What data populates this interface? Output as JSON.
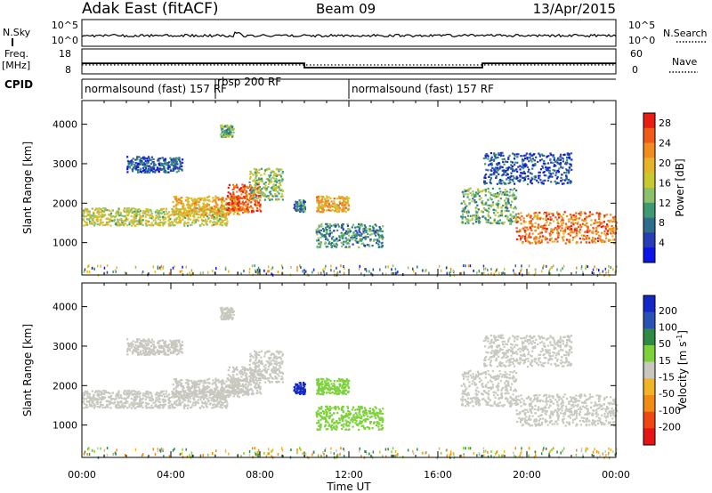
{
  "header": {
    "station": "Adak East (fitACF)",
    "beam": "Beam 09",
    "date": "13/Apr/2015"
  },
  "noise_panel": {
    "left_label": "N.Sky",
    "right_label": "N.Search",
    "left_ticks": [
      "10^5",
      "10^0"
    ],
    "right_ticks": [
      "10^5",
      "10^0"
    ]
  },
  "freq_panel": {
    "left_label": "Freq.",
    "left_unit": "[MHz]",
    "right_label": "Nave",
    "left_ticks": [
      "18",
      "8"
    ],
    "right_ticks": [
      "60",
      "0"
    ]
  },
  "cpid_panel": {
    "label": "CPID",
    "segments": [
      {
        "name": "normalsound (fast) 157 RF",
        "start_h": 0,
        "end_h": 6.0
      },
      {
        "name": "rbsp 200 RF",
        "start_h": 6.0,
        "end_h": 12.0
      },
      {
        "name": "normalsound (fast) 157 RF",
        "start_h": 12.0,
        "end_h": 24.0
      }
    ]
  },
  "power_panel": {
    "ylabel": "Slant Range [km]",
    "yticks": [
      "1000",
      "2000",
      "3000",
      "4000"
    ],
    "colorbar_label": "Power [dB]",
    "colorbar_ticks": [
      "28",
      "24",
      "20",
      "16",
      "12",
      "8",
      "4"
    ]
  },
  "velocity_panel": {
    "ylabel": "Slant Range [km]",
    "yticks": [
      "1000",
      "2000",
      "3000",
      "4000"
    ],
    "colorbar_label": "Velocity [m s",
    "colorbar_sup": "-1",
    "colorbar_label_end": "]",
    "colorbar_ticks": [
      "200",
      "100",
      "50",
      "15",
      "-15",
      "-50",
      "-100",
      "-200"
    ]
  },
  "xaxis": {
    "label": "Time UT",
    "ticks": [
      "00:00",
      "04:00",
      "08:00",
      "12:00",
      "16:00",
      "20:00",
      "00:00"
    ]
  },
  "chart_data": {
    "type": "heatmap",
    "title": "Adak East (fitACF) Beam 09 13/Apr/2015",
    "xlabel": "Time UT",
    "ylabel": "Slant Range [km]",
    "xlim_hours": [
      0,
      24
    ],
    "ylim_km": [
      180,
      4600
    ],
    "frequency_mhz": [
      {
        "start_h": 0,
        "end_h": 10.0,
        "value": 12.5
      },
      {
        "start_h": 10.0,
        "end_h": 18.0,
        "value": 10.5
      },
      {
        "start_h": 18.0,
        "end_h": 24.0,
        "value": 12.5
      }
    ],
    "power_colorscale": {
      "unit": "dB",
      "range": [
        0,
        30
      ],
      "colors": [
        "#0a14e6",
        "#283cb4",
        "#2e6e8c",
        "#3f9a72",
        "#8dc06a",
        "#c8c832",
        "#e6b42a",
        "#f08c20",
        "#f05a1a",
        "#e61e14"
      ]
    },
    "velocity_colorscale": {
      "unit": "m s-1",
      "levels": [
        {
          "label": ">200",
          "color": "#1428c8"
        },
        {
          "label": "100",
          "color": "#2a52b4"
        },
        {
          "label": "50",
          "color": "#2e8a46"
        },
        {
          "label": "15",
          "color": "#7dd23c"
        },
        {
          "label": "0",
          "color": "#c8c8c0"
        },
        {
          "label": "-15",
          "color": "#f0b428"
        },
        {
          "label": "-50",
          "color": "#f08c14"
        },
        {
          "label": "-100",
          "color": "#f04614"
        },
        {
          "label": "-200",
          "color": "#e61414"
        }
      ]
    },
    "echo_regions": [
      {
        "start_h": 0.0,
        "end_h": 6.5,
        "range_lo_km": 1450,
        "range_hi_km": 1900,
        "power_db": 16,
        "velocity": 0
      },
      {
        "start_h": 4.0,
        "end_h": 7.5,
        "range_lo_km": 1700,
        "range_hi_km": 2200,
        "power_db": 20,
        "velocity": 0
      },
      {
        "start_h": 6.5,
        "end_h": 8.0,
        "range_lo_km": 1800,
        "range_hi_km": 2500,
        "power_db": 26,
        "velocity": 0
      },
      {
        "start_h": 7.5,
        "end_h": 9.0,
        "range_lo_km": 2100,
        "range_hi_km": 2900,
        "power_db": 14,
        "velocity": 0
      },
      {
        "start_h": 6.2,
        "end_h": 6.8,
        "range_lo_km": 3700,
        "range_hi_km": 4000,
        "power_db": 12,
        "velocity": 0
      },
      {
        "start_h": 2.0,
        "end_h": 4.5,
        "range_lo_km": 2800,
        "range_hi_km": 3200,
        "power_db": 6,
        "velocity": 0
      },
      {
        "start_h": 9.5,
        "end_h": 10.0,
        "range_lo_km": 1800,
        "range_hi_km": 2100,
        "power_db": 8,
        "velocity": 250
      },
      {
        "start_h": 10.5,
        "end_h": 12.0,
        "range_lo_km": 1800,
        "range_hi_km": 2200,
        "power_db": 20,
        "velocity": 20
      },
      {
        "start_h": 10.5,
        "end_h": 13.5,
        "range_lo_km": 900,
        "range_hi_km": 1500,
        "power_db": 10,
        "velocity": 20
      },
      {
        "start_h": 17.0,
        "end_h": 19.5,
        "range_lo_km": 1500,
        "range_hi_km": 2400,
        "power_db": 12,
        "velocity": 0
      },
      {
        "start_h": 19.5,
        "end_h": 24.0,
        "range_lo_km": 1000,
        "range_hi_km": 1800,
        "power_db": 24,
        "velocity": 0
      },
      {
        "start_h": 18.0,
        "end_h": 22.0,
        "range_lo_km": 2500,
        "range_hi_km": 3300,
        "power_db": 6,
        "velocity": 0
      }
    ]
  }
}
